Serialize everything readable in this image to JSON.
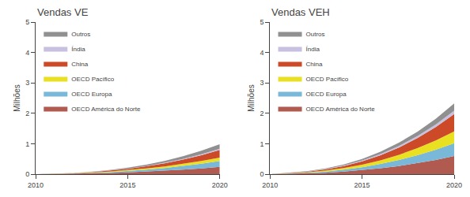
{
  "chart_data": [
    {
      "type": "area",
      "stacked": true,
      "title": "Vendas VE",
      "ylabel": "Milhões",
      "x": [
        2010,
        2011,
        2012,
        2013,
        2014,
        2015,
        2016,
        2017,
        2018,
        2019,
        2020
      ],
      "xlim": [
        2010,
        2020
      ],
      "xticks": [
        2010,
        2015,
        2020
      ],
      "ylim": [
        0,
        5
      ],
      "yticks": [
        0,
        1,
        2,
        3,
        4,
        5
      ],
      "grid": false,
      "legend": "upper left",
      "series": [
        {
          "name": "OECD América do Norte",
          "color": "#b05a50",
          "values": [
            0.0,
            0.005,
            0.012,
            0.022,
            0.038,
            0.058,
            0.082,
            0.112,
            0.148,
            0.19,
            0.24
          ]
        },
        {
          "name": "OECD Europa",
          "color": "#7ab8d9",
          "values": [
            0.0,
            0.004,
            0.01,
            0.018,
            0.03,
            0.046,
            0.066,
            0.09,
            0.118,
            0.152,
            0.192
          ]
        },
        {
          "name": "OECD Pacífico",
          "color": "#e8e020",
          "values": [
            0.0,
            0.002,
            0.005,
            0.01,
            0.017,
            0.026,
            0.038,
            0.052,
            0.069,
            0.089,
            0.112
          ]
        },
        {
          "name": "China",
          "color": "#cc4a28",
          "values": [
            0.0,
            0.003,
            0.008,
            0.016,
            0.028,
            0.046,
            0.07,
            0.102,
            0.142,
            0.192,
            0.252
          ]
        },
        {
          "name": "Índia",
          "color": "#c8c0e0",
          "values": [
            0.0,
            0.001,
            0.002,
            0.003,
            0.005,
            0.008,
            0.012,
            0.017,
            0.023,
            0.03,
            0.038
          ]
        },
        {
          "name": "Outros",
          "color": "#909090",
          "values": [
            0.0,
            0.002,
            0.005,
            0.01,
            0.018,
            0.03,
            0.045,
            0.064,
            0.088,
            0.117,
            0.152
          ]
        }
      ]
    },
    {
      "type": "area",
      "stacked": true,
      "title": "Vendas VEH",
      "ylabel": "Milhões",
      "x": [
        2010,
        2011,
        2012,
        2013,
        2014,
        2015,
        2016,
        2017,
        2018,
        2019,
        2020
      ],
      "xlim": [
        2010,
        2020
      ],
      "xticks": [
        2010,
        2015,
        2020
      ],
      "ylim": [
        0,
        5
      ],
      "yticks": [
        0,
        1,
        2,
        3,
        4,
        5
      ],
      "grid": false,
      "legend": "upper left",
      "series": [
        {
          "name": "OECD América do Norte",
          "color": "#b05a50",
          "values": [
            0.0,
            0.01,
            0.025,
            0.048,
            0.082,
            0.13,
            0.192,
            0.268,
            0.36,
            0.468,
            0.595
          ]
        },
        {
          "name": "OECD Europa",
          "color": "#7ab8d9",
          "values": [
            0.0,
            0.008,
            0.02,
            0.038,
            0.064,
            0.098,
            0.142,
            0.196,
            0.26,
            0.335,
            0.422
          ]
        },
        {
          "name": "OECD Pacífico",
          "color": "#e8e020",
          "values": [
            0.0,
            0.006,
            0.015,
            0.03,
            0.052,
            0.082,
            0.122,
            0.172,
            0.232,
            0.304,
            0.388
          ]
        },
        {
          "name": "China",
          "color": "#cc4a28",
          "values": [
            0.0,
            0.008,
            0.02,
            0.04,
            0.07,
            0.112,
            0.168,
            0.24,
            0.33,
            0.44,
            0.572
          ]
        },
        {
          "name": "Índia",
          "color": "#c8c0e0",
          "values": [
            0.0,
            0.002,
            0.005,
            0.01,
            0.017,
            0.026,
            0.038,
            0.052,
            0.068,
            0.087,
            0.108
          ]
        },
        {
          "name": "Outros",
          "color": "#909090",
          "values": [
            0.0,
            0.004,
            0.01,
            0.02,
            0.034,
            0.052,
            0.076,
            0.106,
            0.143,
            0.188,
            0.242
          ]
        }
      ]
    }
  ]
}
